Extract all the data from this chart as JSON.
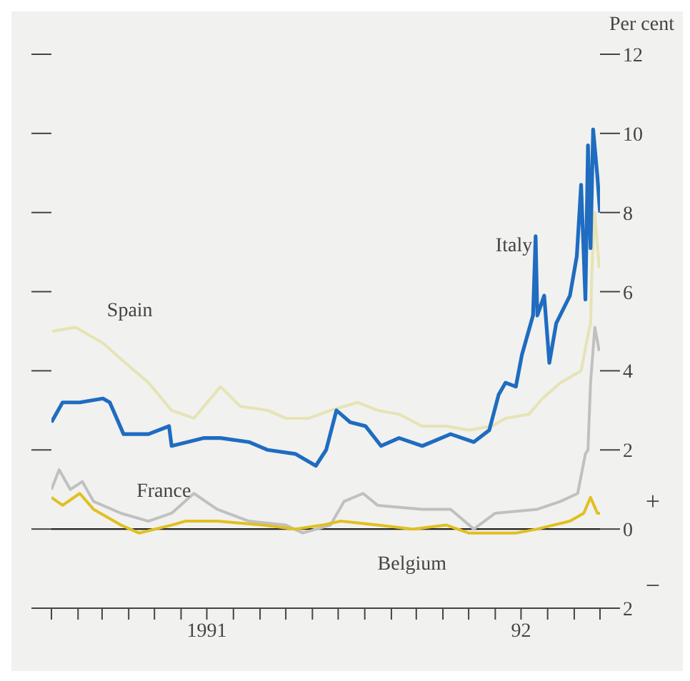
{
  "chart_data": {
    "type": "line",
    "ylabel": "Per cent",
    "xlim": [
      "1991-01-01",
      "1992-10-01"
    ],
    "xticks": [
      {
        "value": "1991-01",
        "label": null
      },
      {
        "value": "1991-02",
        "label": null
      },
      {
        "value": "1991-03",
        "label": null
      },
      {
        "value": "1991-04",
        "label": null
      },
      {
        "value": "1991-05",
        "label": null
      },
      {
        "value": "1991-06",
        "label": null
      },
      {
        "value": "1991-07",
        "label": "1991"
      },
      {
        "value": "1991-08",
        "label": null
      },
      {
        "value": "1991-09",
        "label": null
      },
      {
        "value": "1991-10",
        "label": null
      },
      {
        "value": "1991-11",
        "label": null
      },
      {
        "value": "1991-12",
        "label": null
      },
      {
        "value": "1992-01",
        "label": null
      },
      {
        "value": "1992-02",
        "label": null
      },
      {
        "value": "1992-03",
        "label": null
      },
      {
        "value": "1992-04",
        "label": null
      },
      {
        "value": "1992-05",
        "label": null
      },
      {
        "value": "1992-06",
        "label": null
      },
      {
        "value": "1992-07",
        "label": "92"
      },
      {
        "value": "1992-08",
        "label": null
      },
      {
        "value": "1992-09",
        "label": null
      },
      {
        "value": "1992-10",
        "label": null
      }
    ],
    "ylim": [
      -2,
      12
    ],
    "yticks": [
      {
        "value": -2,
        "label": "2"
      },
      0,
      2,
      4,
      6,
      8,
      10,
      12
    ],
    "marker": "none",
    "line_style": "solid",
    "ref_lines": [
      {
        "axis": "y",
        "value": 0,
        "label": null,
        "color": "#222222"
      }
    ],
    "annotations": [
      "+",
      "−"
    ],
    "series": [
      {
        "name": "Spain",
        "color": "#e6e3b5",
        "x": [
          "1991-01-02",
          "1991-01-29",
          "1991-03-02",
          "1991-03-28",
          "1991-04-24",
          "1991-05-21",
          "1991-06-16",
          "1991-07-17",
          "1991-08-09",
          "1991-09-10",
          "1991-10-01",
          "1991-10-28",
          "1991-11-22",
          "1991-12-24",
          "1992-01-16",
          "1992-02-10",
          "1992-03-08",
          "1992-04-05",
          "1992-05-01",
          "1992-05-28",
          "1992-06-13",
          "1992-07-10",
          "1992-07-26",
          "1992-08-16",
          "1992-09-09",
          "1992-09-17",
          "1992-09-20",
          "1992-09-22",
          "1992-09-25",
          "1992-09-30"
        ],
        "values": [
          5.0,
          5.1,
          4.7,
          4.2,
          3.7,
          3.0,
          2.8,
          3.6,
          3.1,
          3.0,
          2.8,
          2.8,
          3.0,
          3.2,
          3.0,
          2.9,
          2.6,
          2.6,
          2.5,
          2.6,
          2.8,
          2.9,
          3.3,
          3.7,
          4.0,
          4.9,
          5.2,
          6.8,
          8.0,
          6.6
        ]
      },
      {
        "name": "France",
        "color": "#c0c0c0",
        "x": [
          "1991-01-01",
          "1991-01-10",
          "1991-01-23",
          "1991-02-06",
          "1991-02-19",
          "1991-03-23",
          "1991-04-24",
          "1991-05-21",
          "1991-06-16",
          "1991-07-13",
          "1991-08-19",
          "1991-10-01",
          "1991-10-21",
          "1991-11-22",
          "1991-12-08",
          "1991-12-30",
          "1992-01-16",
          "1992-03-08",
          "1992-04-10",
          "1992-05-07",
          "1992-06-01",
          "1992-07-20",
          "1992-08-16",
          "1992-09-05",
          "1992-09-14",
          "1992-09-17",
          "1992-09-20",
          "1992-09-25",
          "1992-09-30"
        ],
        "values": [
          1.0,
          1.5,
          1.0,
          1.2,
          0.7,
          0.4,
          0.2,
          0.4,
          0.9,
          0.5,
          0.2,
          0.1,
          -0.1,
          0.1,
          0.7,
          0.9,
          0.6,
          0.5,
          0.5,
          0.0,
          0.4,
          0.5,
          0.7,
          0.9,
          1.9,
          2.0,
          3.7,
          5.1,
          4.5
        ]
      },
      {
        "name": "Belgium",
        "color": "#e0c020",
        "x": [
          "1991-01-01",
          "1991-01-14",
          "1991-02-03",
          "1991-02-19",
          "1991-03-23",
          "1991-04-13",
          "1991-05-21",
          "1991-06-06",
          "1991-07-13",
          "1991-09-04",
          "1991-10-12",
          "1991-11-13",
          "1991-12-04",
          "1992-01-16",
          "1992-02-26",
          "1992-04-05",
          "1992-05-01",
          "1992-05-28",
          "1992-06-25",
          "1992-07-20",
          "1992-08-27",
          "1992-09-12",
          "1992-09-20",
          "1992-09-28",
          "1992-10-01"
        ],
        "values": [
          0.8,
          0.6,
          0.9,
          0.5,
          0.1,
          -0.1,
          0.1,
          0.2,
          0.2,
          0.1,
          0.0,
          0.1,
          0.2,
          0.1,
          0.0,
          0.1,
          -0.1,
          -0.1,
          -0.1,
          0.0,
          0.2,
          0.4,
          0.8,
          0.4,
          0.4
        ]
      },
      {
        "name": "Italy",
        "color": "#1f6cc0",
        "x": [
          "1991-01-01",
          "1991-01-14",
          "1991-02-03",
          "1991-03-02",
          "1991-03-10",
          "1991-03-26",
          "1991-04-24",
          "1991-05-18",
          "1991-05-21",
          "1991-06-27",
          "1991-07-17",
          "1991-08-19",
          "1991-09-10",
          "1991-10-12",
          "1991-11-05",
          "1991-11-17",
          "1991-11-29",
          "1991-12-15",
          "1992-01-02",
          "1992-01-20",
          "1992-02-10",
          "1992-03-08",
          "1992-04-10",
          "1992-05-07",
          "1992-05-25",
          "1992-06-05",
          "1992-06-13",
          "1992-06-25",
          "1992-07-02",
          "1992-07-15",
          "1992-07-18",
          "1992-07-20",
          "1992-07-28",
          "1992-08-03",
          "1992-08-11",
          "1992-08-27",
          "1992-09-04",
          "1992-09-09",
          "1992-09-14",
          "1992-09-17",
          "1992-09-20",
          "1992-09-23",
          "1992-09-28",
          "1992-10-01"
        ],
        "values": [
          2.7,
          3.2,
          3.2,
          3.3,
          3.2,
          2.4,
          2.4,
          2.6,
          2.1,
          2.3,
          2.3,
          2.2,
          2.0,
          1.9,
          1.6,
          2.0,
          3.0,
          2.7,
          2.6,
          2.1,
          2.3,
          2.1,
          2.4,
          2.2,
          2.5,
          3.4,
          3.7,
          3.6,
          4.4,
          5.4,
          7.4,
          5.4,
          5.9,
          4.2,
          5.2,
          5.9,
          6.9,
          8.7,
          5.8,
          9.7,
          7.1,
          10.1,
          8.9,
          8.0
        ]
      }
    ]
  }
}
